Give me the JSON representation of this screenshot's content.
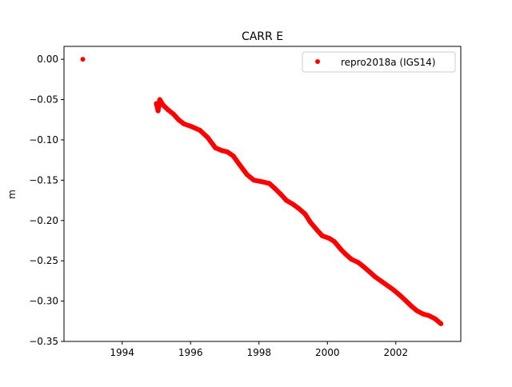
{
  "chart_data": {
    "type": "scatter",
    "title": "CARR E",
    "xlabel": "",
    "ylabel": "m",
    "xlim": [
      1992.3,
      2003.9
    ],
    "ylim": [
      -0.35,
      0.016
    ],
    "xticks": [
      1994,
      1996,
      1998,
      2000,
      2002
    ],
    "xtick_labels": [
      "1994",
      "1996",
      "1998",
      "2000",
      "2002"
    ],
    "yticks": [
      0.0,
      -0.05,
      -0.1,
      -0.15,
      -0.2,
      -0.25,
      -0.3,
      -0.35
    ],
    "ytick_labels": [
      "0.00",
      "−0.05",
      "−0.10",
      "−0.15",
      "−0.20",
      "−0.25",
      "−0.30",
      "−0.35"
    ],
    "grid": false,
    "legend_position": "top-right",
    "series": [
      {
        "name": "repro2018a (IGS14)",
        "color": "#ff0000",
        "x": [
          1992.85,
          1995.0,
          1995.05,
          1995.1,
          1995.2,
          1995.35,
          1995.5,
          1995.65,
          1995.8,
          1996.0,
          1996.27,
          1996.5,
          1996.73,
          1996.9,
          1997.08,
          1997.25,
          1997.42,
          1997.65,
          1997.85,
          1998.1,
          1998.3,
          1998.46,
          1998.65,
          1998.8,
          1999.0,
          1999.16,
          1999.35,
          1999.5,
          1999.7,
          1999.85,
          2000.05,
          2000.2,
          2000.4,
          2000.54,
          2000.7,
          2000.9,
          2001.05,
          2001.24,
          2001.4,
          2001.6,
          2001.8,
          2001.93,
          2002.1,
          2002.28,
          2002.45,
          2002.62,
          2002.8,
          2002.97,
          2003.15,
          2003.32
        ],
        "y": [
          0.0,
          -0.055,
          -0.064,
          -0.05,
          -0.057,
          -0.063,
          -0.068,
          -0.075,
          -0.08,
          -0.083,
          -0.088,
          -0.097,
          -0.11,
          -0.113,
          -0.115,
          -0.12,
          -0.13,
          -0.143,
          -0.15,
          -0.152,
          -0.154,
          -0.16,
          -0.168,
          -0.175,
          -0.18,
          -0.185,
          -0.192,
          -0.202,
          -0.212,
          -0.219,
          -0.222,
          -0.226,
          -0.236,
          -0.242,
          -0.248,
          -0.252,
          -0.257,
          -0.264,
          -0.27,
          -0.276,
          -0.282,
          -0.286,
          -0.292,
          -0.299,
          -0.306,
          -0.312,
          -0.316,
          -0.318,
          -0.322,
          -0.328
        ]
      }
    ]
  }
}
